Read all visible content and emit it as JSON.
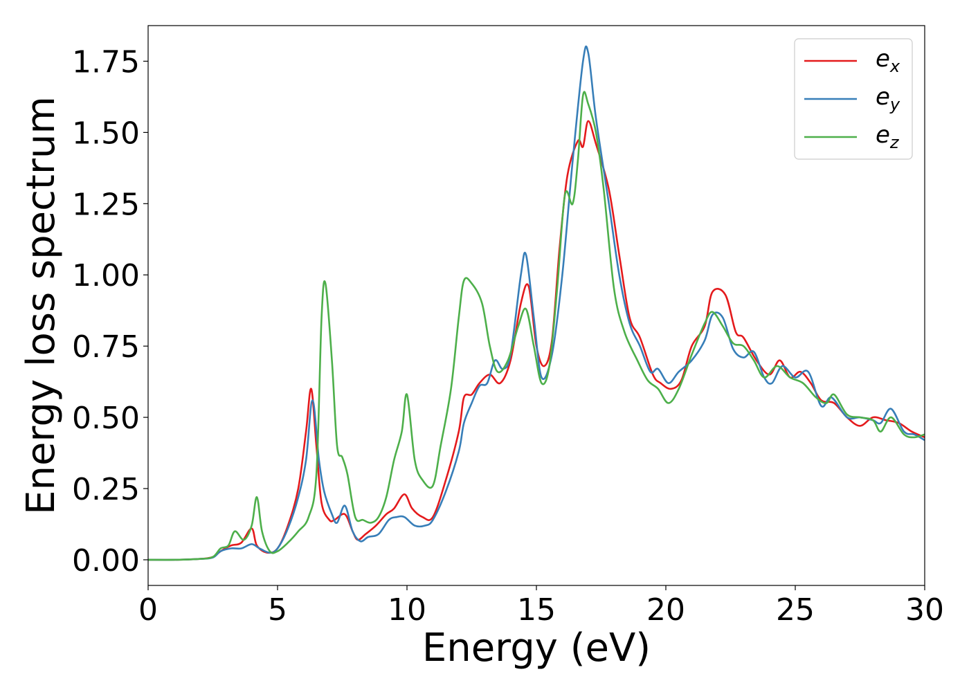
{
  "chart_data": {
    "type": "line",
    "xlabel": "Energy (eV)",
    "ylabel": "Energy loss spectrum",
    "xlim": [
      0,
      30
    ],
    "ylim": [
      -0.09,
      1.875
    ],
    "xticks": [
      0,
      5,
      10,
      15,
      20,
      25,
      30
    ],
    "xtick_labels": [
      "0",
      "5",
      "10",
      "15",
      "20",
      "25",
      "30"
    ],
    "yticks": [
      0.0,
      0.25,
      0.5,
      0.75,
      1.0,
      1.25,
      1.5,
      1.75
    ],
    "ytick_labels": [
      "0.00",
      "0.25",
      "0.50",
      "0.75",
      "1.00",
      "1.25",
      "1.50",
      "1.75"
    ],
    "grid": false,
    "legend_position": "top-right",
    "series": [
      {
        "name": "e",
        "subscript": "x",
        "color": "#e41a1c",
        "points": [
          [
            0,
            0
          ],
          [
            1,
            0
          ],
          [
            2,
            0.003
          ],
          [
            2.5,
            0.01
          ],
          [
            2.8,
            0.03
          ],
          [
            3.2,
            0.05
          ],
          [
            3.6,
            0.06
          ],
          [
            4.0,
            0.11
          ],
          [
            4.2,
            0.05
          ],
          [
            4.6,
            0.025
          ],
          [
            5.0,
            0.04
          ],
          [
            5.4,
            0.12
          ],
          [
            5.8,
            0.25
          ],
          [
            6.1,
            0.45
          ],
          [
            6.3,
            0.6
          ],
          [
            6.5,
            0.4
          ],
          [
            6.7,
            0.2
          ],
          [
            7.0,
            0.14
          ],
          [
            7.2,
            0.14
          ],
          [
            7.6,
            0.16
          ],
          [
            7.9,
            0.1
          ],
          [
            8.1,
            0.07
          ],
          [
            8.4,
            0.09
          ],
          [
            8.8,
            0.12
          ],
          [
            9.2,
            0.16
          ],
          [
            9.5,
            0.18
          ],
          [
            9.9,
            0.23
          ],
          [
            10.2,
            0.18
          ],
          [
            10.6,
            0.15
          ],
          [
            11.0,
            0.15
          ],
          [
            11.5,
            0.28
          ],
          [
            12.0,
            0.45
          ],
          [
            12.2,
            0.57
          ],
          [
            12.5,
            0.58
          ],
          [
            12.8,
            0.62
          ],
          [
            13.2,
            0.65
          ],
          [
            13.6,
            0.62
          ],
          [
            14.0,
            0.7
          ],
          [
            14.4,
            0.9
          ],
          [
            14.7,
            0.96
          ],
          [
            15.0,
            0.75
          ],
          [
            15.3,
            0.68
          ],
          [
            15.6,
            0.77
          ],
          [
            15.9,
            1.1
          ],
          [
            16.2,
            1.35
          ],
          [
            16.6,
            1.47
          ],
          [
            16.8,
            1.45
          ],
          [
            17.0,
            1.54
          ],
          [
            17.3,
            1.46
          ],
          [
            17.8,
            1.3
          ],
          [
            18.2,
            1.07
          ],
          [
            18.6,
            0.85
          ],
          [
            19.0,
            0.78
          ],
          [
            19.5,
            0.65
          ],
          [
            19.8,
            0.62
          ],
          [
            20.2,
            0.6
          ],
          [
            20.6,
            0.63
          ],
          [
            21.0,
            0.75
          ],
          [
            21.5,
            0.82
          ],
          [
            21.8,
            0.94
          ],
          [
            22.3,
            0.93
          ],
          [
            22.7,
            0.8
          ],
          [
            23.0,
            0.78
          ],
          [
            23.5,
            0.7
          ],
          [
            24.0,
            0.65
          ],
          [
            24.4,
            0.7
          ],
          [
            24.8,
            0.64
          ],
          [
            25.2,
            0.66
          ],
          [
            25.6,
            0.62
          ],
          [
            26.0,
            0.56
          ],
          [
            26.5,
            0.55
          ],
          [
            27.0,
            0.5
          ],
          [
            27.5,
            0.47
          ],
          [
            28.0,
            0.5
          ],
          [
            28.5,
            0.49
          ],
          [
            29.0,
            0.48
          ],
          [
            29.5,
            0.45
          ],
          [
            30.0,
            0.43
          ]
        ]
      },
      {
        "name": "e",
        "subscript": "y",
        "color": "#377eb8",
        "points": [
          [
            0,
            0
          ],
          [
            1,
            0
          ],
          [
            2,
            0.003
          ],
          [
            2.5,
            0.008
          ],
          [
            2.8,
            0.03
          ],
          [
            3.2,
            0.04
          ],
          [
            3.6,
            0.04
          ],
          [
            4.0,
            0.055
          ],
          [
            4.3,
            0.04
          ],
          [
            4.7,
            0.025
          ],
          [
            5.0,
            0.04
          ],
          [
            5.4,
            0.11
          ],
          [
            5.8,
            0.22
          ],
          [
            6.1,
            0.35
          ],
          [
            6.35,
            0.56
          ],
          [
            6.6,
            0.35
          ],
          [
            6.8,
            0.24
          ],
          [
            7.1,
            0.16
          ],
          [
            7.3,
            0.13
          ],
          [
            7.6,
            0.19
          ],
          [
            7.9,
            0.1
          ],
          [
            8.2,
            0.065
          ],
          [
            8.5,
            0.08
          ],
          [
            8.9,
            0.09
          ],
          [
            9.3,
            0.14
          ],
          [
            9.6,
            0.15
          ],
          [
            9.9,
            0.15
          ],
          [
            10.3,
            0.12
          ],
          [
            10.7,
            0.12
          ],
          [
            11.0,
            0.14
          ],
          [
            11.5,
            0.24
          ],
          [
            12.0,
            0.38
          ],
          [
            12.2,
            0.48
          ],
          [
            12.5,
            0.55
          ],
          [
            12.8,
            0.61
          ],
          [
            13.1,
            0.62
          ],
          [
            13.4,
            0.7
          ],
          [
            13.7,
            0.67
          ],
          [
            14.0,
            0.72
          ],
          [
            14.4,
            1.0
          ],
          [
            14.6,
            1.07
          ],
          [
            14.9,
            0.85
          ],
          [
            15.2,
            0.64
          ],
          [
            15.6,
            0.72
          ],
          [
            16.0,
            1.0
          ],
          [
            16.4,
            1.4
          ],
          [
            16.8,
            1.75
          ],
          [
            17.0,
            1.78
          ],
          [
            17.3,
            1.55
          ],
          [
            17.8,
            1.25
          ],
          [
            18.2,
            1.0
          ],
          [
            18.6,
            0.83
          ],
          [
            19.0,
            0.75
          ],
          [
            19.4,
            0.66
          ],
          [
            19.7,
            0.67
          ],
          [
            20.1,
            0.62
          ],
          [
            20.5,
            0.66
          ],
          [
            21.0,
            0.7
          ],
          [
            21.5,
            0.77
          ],
          [
            21.8,
            0.86
          ],
          [
            22.2,
            0.85
          ],
          [
            22.6,
            0.74
          ],
          [
            23.0,
            0.71
          ],
          [
            23.4,
            0.73
          ],
          [
            23.8,
            0.64
          ],
          [
            24.1,
            0.62
          ],
          [
            24.5,
            0.68
          ],
          [
            25.0,
            0.64
          ],
          [
            25.5,
            0.66
          ],
          [
            26.0,
            0.54
          ],
          [
            26.4,
            0.57
          ],
          [
            27.0,
            0.5
          ],
          [
            27.5,
            0.5
          ],
          [
            28.0,
            0.49
          ],
          [
            28.3,
            0.48
          ],
          [
            28.7,
            0.53
          ],
          [
            29.2,
            0.45
          ],
          [
            29.6,
            0.44
          ],
          [
            30.0,
            0.42
          ]
        ]
      },
      {
        "name": "e",
        "subscript": "z",
        "color": "#4daf4a",
        "points": [
          [
            0,
            0
          ],
          [
            1,
            0
          ],
          [
            2,
            0.003
          ],
          [
            2.5,
            0.01
          ],
          [
            2.8,
            0.04
          ],
          [
            3.1,
            0.05
          ],
          [
            3.35,
            0.1
          ],
          [
            3.7,
            0.07
          ],
          [
            4.0,
            0.12
          ],
          [
            4.2,
            0.22
          ],
          [
            4.4,
            0.1
          ],
          [
            4.7,
            0.03
          ],
          [
            5.0,
            0.03
          ],
          [
            5.4,
            0.06
          ],
          [
            5.8,
            0.1
          ],
          [
            6.2,
            0.15
          ],
          [
            6.5,
            0.3
          ],
          [
            6.7,
            0.85
          ],
          [
            6.85,
            0.97
          ],
          [
            7.1,
            0.7
          ],
          [
            7.3,
            0.4
          ],
          [
            7.5,
            0.36
          ],
          [
            7.7,
            0.3
          ],
          [
            8.0,
            0.15
          ],
          [
            8.3,
            0.14
          ],
          [
            8.6,
            0.13
          ],
          [
            8.9,
            0.15
          ],
          [
            9.2,
            0.22
          ],
          [
            9.5,
            0.35
          ],
          [
            9.8,
            0.45
          ],
          [
            10.0,
            0.58
          ],
          [
            10.3,
            0.35
          ],
          [
            10.6,
            0.28
          ],
          [
            11.0,
            0.26
          ],
          [
            11.3,
            0.4
          ],
          [
            11.7,
            0.6
          ],
          [
            12.0,
            0.85
          ],
          [
            12.2,
            0.98
          ],
          [
            12.5,
            0.97
          ],
          [
            12.9,
            0.9
          ],
          [
            13.2,
            0.75
          ],
          [
            13.5,
            0.66
          ],
          [
            13.9,
            0.7
          ],
          [
            14.3,
            0.82
          ],
          [
            14.6,
            0.88
          ],
          [
            14.9,
            0.75
          ],
          [
            15.2,
            0.62
          ],
          [
            15.5,
            0.68
          ],
          [
            15.8,
            0.95
          ],
          [
            16.1,
            1.28
          ],
          [
            16.4,
            1.25
          ],
          [
            16.6,
            1.4
          ],
          [
            16.8,
            1.63
          ],
          [
            17.0,
            1.6
          ],
          [
            17.3,
            1.5
          ],
          [
            17.6,
            1.3
          ],
          [
            18.0,
            0.95
          ],
          [
            18.4,
            0.8
          ],
          [
            18.9,
            0.7
          ],
          [
            19.3,
            0.63
          ],
          [
            19.7,
            0.6
          ],
          [
            20.1,
            0.55
          ],
          [
            20.5,
            0.6
          ],
          [
            21.0,
            0.72
          ],
          [
            21.5,
            0.83
          ],
          [
            21.8,
            0.87
          ],
          [
            22.2,
            0.82
          ],
          [
            22.6,
            0.76
          ],
          [
            23.0,
            0.75
          ],
          [
            23.4,
            0.7
          ],
          [
            23.8,
            0.64
          ],
          [
            24.3,
            0.68
          ],
          [
            24.8,
            0.64
          ],
          [
            25.3,
            0.62
          ],
          [
            25.8,
            0.57
          ],
          [
            26.2,
            0.55
          ],
          [
            26.5,
            0.58
          ],
          [
            27.0,
            0.51
          ],
          [
            27.5,
            0.5
          ],
          [
            28.0,
            0.49
          ],
          [
            28.3,
            0.45
          ],
          [
            28.7,
            0.5
          ],
          [
            29.2,
            0.44
          ],
          [
            29.6,
            0.43
          ],
          [
            30.0,
            0.44
          ]
        ]
      }
    ]
  }
}
